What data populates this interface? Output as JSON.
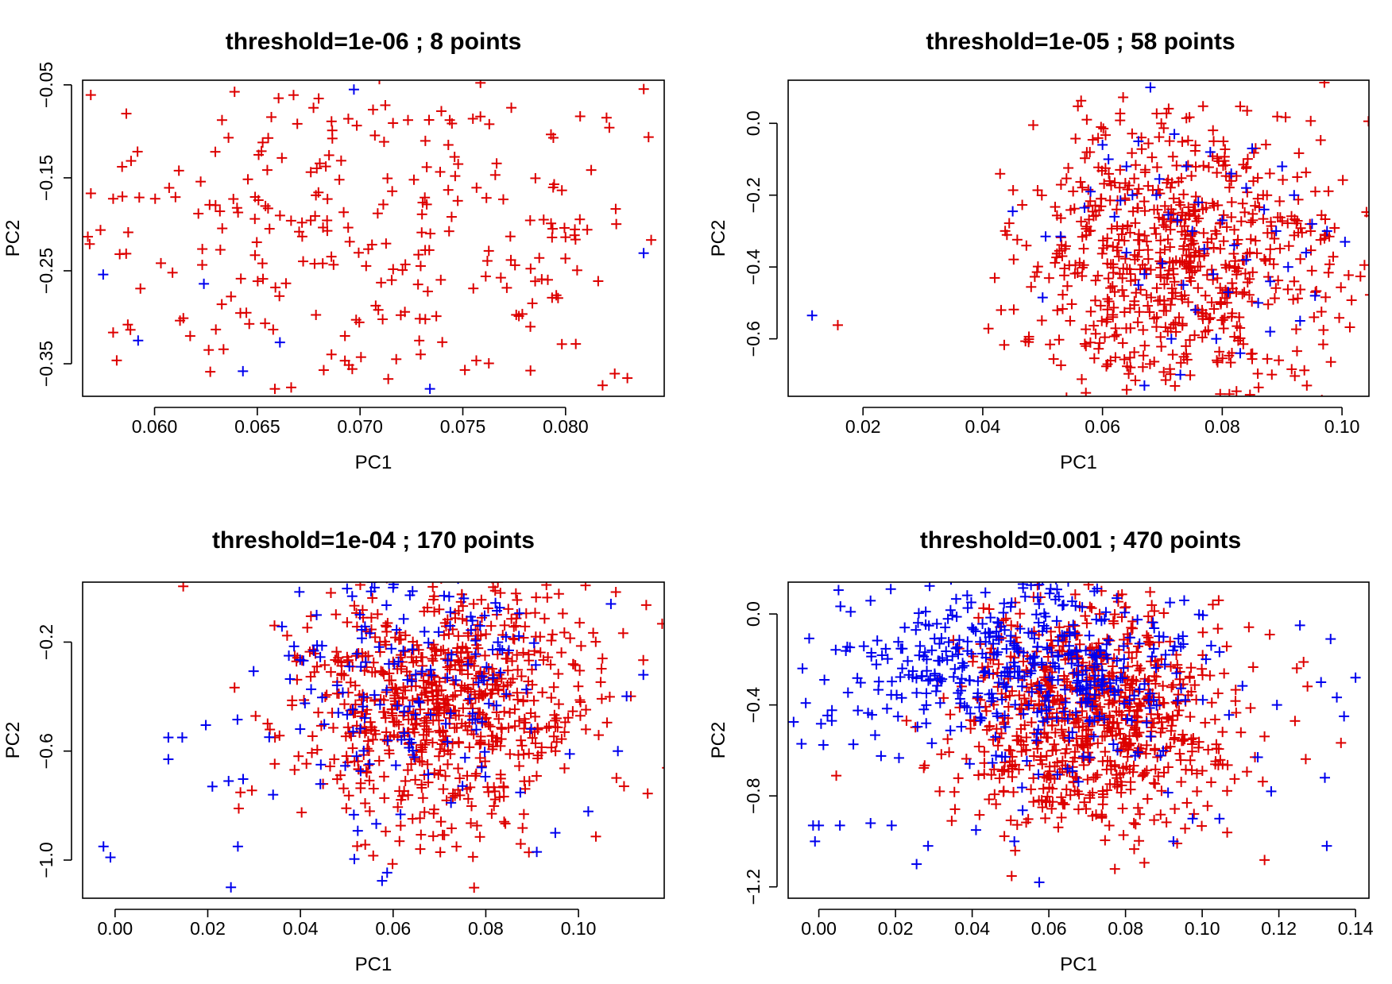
{
  "chart_data": [
    {
      "type": "scatter",
      "title": "threshold=1e-06 ; 8 points",
      "xlabel": "PC1",
      "ylabel": "PC2",
      "xlim": [
        0.0565,
        0.0848
      ],
      "ylim": [
        -0.385,
        -0.045
      ],
      "xticks": [
        0.06,
        0.065,
        0.07,
        0.075,
        0.08
      ],
      "xtick_labels": [
        "0.060",
        "0.065",
        "0.070",
        "0.075",
        "0.080"
      ],
      "yticks": [
        -0.05,
        -0.15,
        -0.25,
        -0.35
      ],
      "ytick_labels": [
        "−0.05",
        "−0.15",
        "−0.25",
        "−0.35"
      ],
      "marker": "+",
      "colors": {
        "background_points": "#dd0000",
        "selected_points": "#0000ee"
      },
      "background_points": {
        "count": 320,
        "x_mean": 0.0705,
        "x_sd": 0.0085,
        "y_mean": -0.215,
        "y_sd": 0.1
      },
      "selected_points": [
        [
          0.0575,
          -0.254
        ],
        [
          0.0592,
          -0.325
        ],
        [
          0.0624,
          -0.264
        ],
        [
          0.0643,
          -0.358
        ],
        [
          0.0661,
          -0.327
        ],
        [
          0.0697,
          -0.055
        ],
        [
          0.0734,
          -0.377
        ],
        [
          0.0838,
          -0.231
        ]
      ]
    },
    {
      "type": "scatter",
      "title": "threshold=1e-05 ; 58 points",
      "xlabel": "PC1",
      "ylabel": "PC2",
      "xlim": [
        0.0075,
        0.1045
      ],
      "ylim": [
        -0.76,
        0.12
      ],
      "xticks": [
        0.02,
        0.04,
        0.06,
        0.08,
        0.1
      ],
      "xtick_labels": [
        "0.02",
        "0.04",
        "0.06",
        "0.08",
        "0.10"
      ],
      "yticks": [
        0.0,
        -0.2,
        -0.4,
        -0.6
      ],
      "ytick_labels": [
        "0.0",
        "−0.2",
        "−0.4",
        "−0.6"
      ],
      "marker": "+",
      "colors": {
        "background_points": "#dd0000",
        "selected_points": "#0000ee"
      },
      "background_points": {
        "count": 700,
        "x_mean": 0.073,
        "x_sd": 0.013,
        "y_mean": -0.38,
        "y_sd": 0.2
      },
      "selected_points": [
        [
          0.0115,
          -0.535
        ],
        [
          0.045,
          -0.245
        ],
        [
          0.05,
          -0.485
        ],
        [
          0.0505,
          -0.315
        ],
        [
          0.053,
          -0.315
        ],
        [
          0.057,
          -0.235
        ],
        [
          0.058,
          -0.19
        ],
        [
          0.06,
          -0.06
        ],
        [
          0.061,
          -0.1
        ],
        [
          0.062,
          -0.26
        ],
        [
          0.063,
          -0.215
        ],
        [
          0.064,
          -0.36
        ],
        [
          0.064,
          -0.12
        ],
        [
          0.065,
          -0.2
        ],
        [
          0.066,
          -0.45
        ],
        [
          0.066,
          -0.05
        ],
        [
          0.067,
          -0.42
        ],
        [
          0.067,
          -0.73
        ],
        [
          0.068,
          0.1
        ],
        [
          0.069,
          -0.2
        ],
        [
          0.0695,
          -0.155
        ],
        [
          0.07,
          -0.39
        ],
        [
          0.071,
          -0.255
        ],
        [
          0.0715,
          -0.6
        ],
        [
          0.072,
          -0.03
        ],
        [
          0.0725,
          -0.27
        ],
        [
          0.073,
          -0.7
        ],
        [
          0.0735,
          -0.45
        ],
        [
          0.074,
          -0.12
        ],
        [
          0.075,
          -0.3
        ],
        [
          0.0755,
          -0.52
        ],
        [
          0.076,
          -0.22
        ],
        [
          0.077,
          -0.35
        ],
        [
          0.078,
          -0.08
        ],
        [
          0.0785,
          -0.42
        ],
        [
          0.079,
          -0.6
        ],
        [
          0.08,
          -0.27
        ],
        [
          0.081,
          -0.47
        ],
        [
          0.0815,
          -0.14
        ],
        [
          0.082,
          -0.34
        ],
        [
          0.083,
          -0.64
        ],
        [
          0.084,
          -0.18
        ],
        [
          0.084,
          -0.38
        ],
        [
          0.085,
          -0.07
        ],
        [
          0.086,
          -0.5
        ],
        [
          0.087,
          -0.24
        ],
        [
          0.088,
          -0.44
        ],
        [
          0.088,
          -0.58
        ],
        [
          0.089,
          -0.3
        ],
        [
          0.09,
          -0.12
        ],
        [
          0.091,
          -0.4
        ],
        [
          0.092,
          -0.2
        ],
        [
          0.093,
          -0.55
        ],
        [
          0.094,
          -0.36
        ],
        [
          0.095,
          -0.28
        ],
        [
          0.0955,
          -0.48
        ],
        [
          0.0975,
          -0.3
        ],
        [
          0.1005,
          -0.33
        ]
      ]
    },
    {
      "type": "scatter",
      "title": "threshold=1e-04 ; 170 points",
      "xlabel": "PC1",
      "ylabel": "PC2",
      "xlim": [
        -0.007,
        0.1185
      ],
      "ylim": [
        -1.14,
        0.02
      ],
      "xticks": [
        0.0,
        0.02,
        0.04,
        0.06,
        0.08,
        0.1
      ],
      "xtick_labels": [
        "0.00",
        "0.02",
        "0.04",
        "0.06",
        "0.08",
        "0.10"
      ],
      "yticks": [
        -0.2,
        -0.6,
        -1.0
      ],
      "ytick_labels": [
        "−0.2",
        "−0.6",
        "−1.0"
      ],
      "marker": "+",
      "colors": {
        "background_points": "#dd0000",
        "selected_points": "#0000ee"
      },
      "background_points": {
        "count": 760,
        "x_mean": 0.07,
        "x_sd": 0.017,
        "y_mean": -0.42,
        "y_sd": 0.24
      },
      "selected_points_summary": {
        "count": 170,
        "x_mean": 0.064,
        "x_sd": 0.017,
        "y_mean": -0.35,
        "y_sd": 0.25
      },
      "selected_points_highlighted": [
        [
          -0.0025,
          -0.95
        ],
        [
          -0.001,
          -0.99
        ],
        [
          0.0115,
          -0.55
        ],
        [
          0.0115,
          -0.63
        ],
        [
          0.0145,
          -0.55
        ],
        [
          0.021,
          -0.73
        ],
        [
          0.0245,
          -0.71
        ],
        [
          0.025,
          -1.1
        ],
        [
          0.0265,
          -0.95
        ],
        [
          0.0375,
          -0.25
        ],
        [
          0.114,
          -0.32
        ],
        [
          0.1085,
          -0.6
        ],
        [
          0.107,
          -0.06
        ],
        [
          0.095,
          -0.9
        ],
        [
          0.091,
          -0.97
        ],
        [
          0.06,
          0.0
        ],
        [
          0.056,
          0.0
        ],
        [
          0.071,
          -0.03
        ]
      ]
    },
    {
      "type": "scatter",
      "title": "threshold=0.001 ; 470 points",
      "xlabel": "PC1",
      "ylabel": "PC2",
      "xlim": [
        -0.008,
        0.1435
      ],
      "ylim": [
        -1.25,
        0.14
      ],
      "xticks": [
        0.0,
        0.02,
        0.04,
        0.06,
        0.08,
        0.1,
        0.12,
        0.14
      ],
      "xtick_labels": [
        "0.00",
        "0.02",
        "0.04",
        "0.06",
        "0.08",
        "0.10",
        "0.12",
        "0.14"
      ],
      "yticks": [
        0.0,
        -0.4,
        -0.8,
        -1.2
      ],
      "ytick_labels": [
        "0.0",
        "−0.4",
        "−0.8",
        "−1.2"
      ],
      "marker": "+",
      "colors": {
        "background_points": "#dd0000",
        "selected_points": "#0000ee"
      },
      "background_points": {
        "count": 820,
        "x_mean": 0.072,
        "x_sd": 0.018,
        "y_mean": -0.46,
        "y_sd": 0.26
      },
      "selected_points_summary": {
        "count": 470,
        "x_mean": 0.052,
        "x_sd": 0.025,
        "y_mean": -0.22,
        "y_sd": 0.2
      },
      "selected_points_highlighted": [
        [
          -0.0015,
          -0.93
        ],
        [
          -0.001,
          -1.0
        ],
        [
          0.0,
          -0.93
        ],
        [
          0.0055,
          -0.93
        ],
        [
          0.0135,
          -0.92
        ],
        [
          0.019,
          -0.93
        ],
        [
          0.0255,
          -1.1
        ],
        [
          0.0285,
          -1.02
        ],
        [
          0.041,
          -0.95
        ],
        [
          0.051,
          -1.0
        ],
        [
          0.0575,
          -1.18
        ],
        [
          0.0925,
          -1.0
        ],
        [
          0.0975,
          -0.9
        ],
        [
          0.1045,
          -0.9
        ],
        [
          0.1145,
          -0.63
        ],
        [
          0.118,
          -0.78
        ],
        [
          0.1195,
          -0.4
        ],
        [
          0.1255,
          -0.05
        ],
        [
          0.131,
          -0.3
        ],
        [
          0.132,
          -0.72
        ],
        [
          0.1325,
          -1.02
        ],
        [
          0.1335,
          -0.11
        ],
        [
          0.137,
          -0.45
        ],
        [
          0.14,
          -0.28
        ]
      ]
    }
  ]
}
